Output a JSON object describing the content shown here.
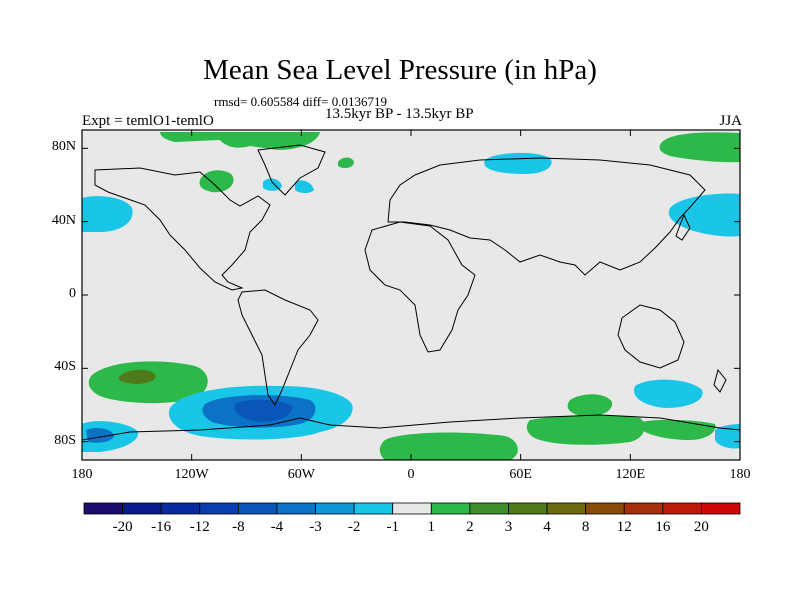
{
  "figure": {
    "title": "Mean Sea Level Pressure (in hPa)",
    "stats_line": "rmsd= 0.605584 diff= 0.0136719",
    "subtitle": "13.5kyr BP - 13.5kyr BP",
    "left_label": "Expt = temlO1-temlO",
    "right_label": "JJA"
  },
  "axes": {
    "y_ticks": [
      "80N",
      "40N",
      "0",
      "40S",
      "80S"
    ],
    "y_values": [
      80,
      40,
      0,
      -40,
      -80
    ],
    "x_ticks": [
      "180",
      "120W",
      "60W",
      "0",
      "60E",
      "120E",
      "180"
    ],
    "x_values": [
      -180,
      -120,
      -60,
      0,
      60,
      120,
      180
    ],
    "lon_range": [
      -180,
      180
    ],
    "lat_range": [
      -90,
      90
    ]
  },
  "colorbar": {
    "labels": [
      "-20",
      "-16",
      "-12",
      "-8",
      "-4",
      "-3",
      "-2",
      "-1",
      "1",
      "2",
      "3",
      "4",
      "8",
      "12",
      "16",
      "20"
    ],
    "colors": [
      "#1c0f6b",
      "#0b1c8a",
      "#0a2aa0",
      "#0c3fae",
      "#0a56b8",
      "#0b72c6",
      "#1396d6",
      "#19c6e8",
      "#e8e8e8",
      "#2db84a",
      "#3f8e2a",
      "#4f7a1a",
      "#6e6a10",
      "#8a4a0c",
      "#a4300c",
      "#bb1a0a",
      "#cc0808"
    ]
  },
  "colors": {
    "background_field": "#e8e8e8",
    "coast": "#000000"
  }
}
